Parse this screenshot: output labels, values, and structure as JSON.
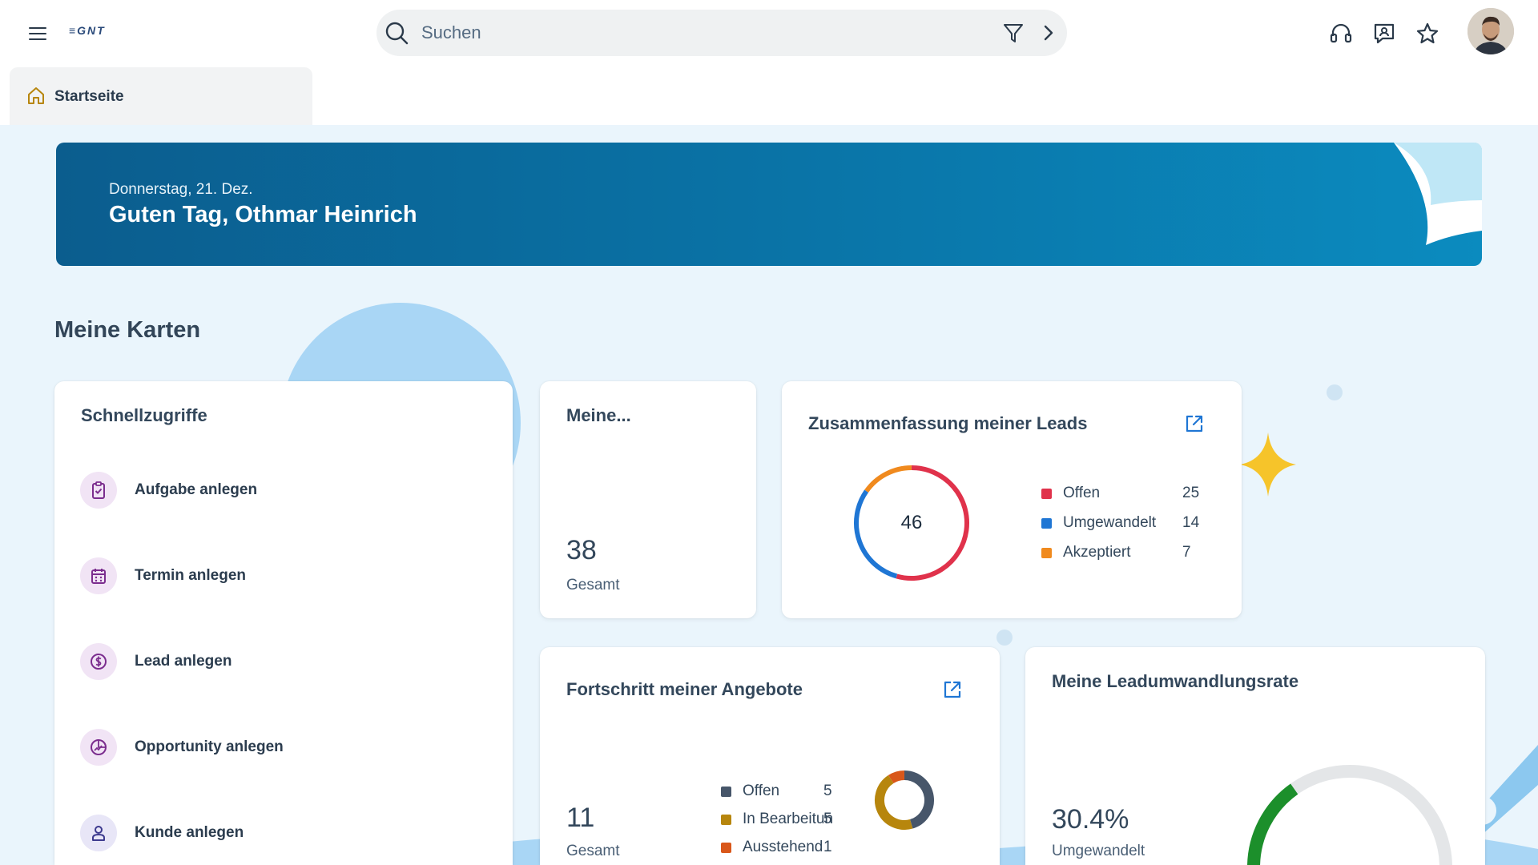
{
  "shell": {
    "logo": "≡GNT",
    "search_placeholder": "Suchen"
  },
  "tabs": [
    {
      "label": "Startseite"
    }
  ],
  "banner": {
    "date": "Donnerstag, 21. Dez.",
    "greeting": "Guten Tag, Othmar Heinrich"
  },
  "section_title": "Meine Karten",
  "quick_access": {
    "title": "Schnellzugriffe",
    "items": [
      {
        "label": "Aufgabe anlegen",
        "icon": "clipboard-check-icon"
      },
      {
        "label": "Termin anlegen",
        "icon": "calendar-icon"
      },
      {
        "label": "Lead anlegen",
        "icon": "dollar-coin-icon"
      },
      {
        "label": "Opportunity anlegen",
        "icon": "opportunity-chart-icon"
      },
      {
        "label": "Kunde anlegen",
        "icon": "person-icon"
      }
    ]
  },
  "meine_card": {
    "title": "Meine...",
    "value": "38",
    "label": "Gesamt"
  },
  "leads_card": {
    "title": "Zusammenfassung meiner Leads",
    "total": "46"
  },
  "offers_card": {
    "title": "Fortschritt meiner Angebote",
    "value": "11",
    "label": "Gesamt"
  },
  "conversion_card": {
    "title": "Meine Leadumwandlungsrate",
    "value": "30.4%",
    "label": "Umgewandelt"
  },
  "chart_data": [
    {
      "type": "pie",
      "title": "Zusammenfassung meiner Leads",
      "center_label": "46",
      "categories": [
        "Offen",
        "Umgewandelt",
        "Akzeptiert"
      ],
      "values": [
        25,
        14,
        7
      ],
      "colors": [
        "#e0324b",
        "#1f76d4",
        "#f08a1e"
      ]
    },
    {
      "type": "pie",
      "title": "Fortschritt meiner Angebote",
      "categories": [
        "Offen",
        "In Bearbeitun",
        "Ausstehend"
      ],
      "values": [
        5,
        5,
        1
      ],
      "colors": [
        "#47566a",
        "#b7860d",
        "#d9571a"
      ]
    },
    {
      "type": "gauge",
      "title": "Meine Leadumwandlungsrate",
      "value_percent": 30.4,
      "colors": [
        "#1c8f2b",
        "#e4e6e8"
      ]
    }
  ]
}
